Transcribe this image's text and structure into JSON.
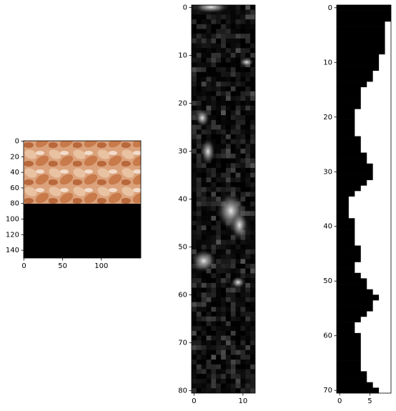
{
  "chart_data": [
    {
      "type": "image",
      "xlim": [
        -0.5,
        151
      ],
      "ylim": [
        150,
        -0.5
      ],
      "xticks": [
        0,
        50,
        100
      ],
      "yticks": [
        0,
        20,
        40,
        60,
        80,
        100,
        120,
        140
      ]
    },
    {
      "type": "image",
      "xlim": [
        -0.5,
        12.5
      ],
      "ylim": [
        80.5,
        -0.5
      ],
      "xticks": [
        0,
        10
      ],
      "yticks": [
        0,
        10,
        20,
        30,
        40,
        50,
        60,
        70,
        80
      ]
    },
    {
      "type": "profile",
      "xlim": [
        -0.5,
        8.5
      ],
      "ylim": [
        70.5,
        -0.5
      ],
      "xticks": [
        0,
        5
      ],
      "yticks": [
        0,
        10,
        20,
        30,
        40,
        50,
        60,
        70
      ],
      "values": [
        9,
        9,
        9,
        8,
        8,
        8,
        8,
        8,
        8,
        7,
        7,
        7,
        6,
        6,
        5,
        4,
        4,
        4,
        4,
        3,
        3,
        3,
        3,
        3,
        4,
        4,
        4,
        5,
        5,
        6,
        6,
        6,
        5,
        4,
        3,
        2,
        2,
        2,
        2,
        3,
        3,
        3,
        3,
        3,
        4,
        4,
        4,
        3,
        3,
        4,
        5,
        5,
        6,
        7,
        6,
        6,
        5,
        4,
        3,
        3,
        4,
        4,
        4,
        4,
        4,
        4,
        4,
        5,
        5,
        6,
        7
      ]
    }
  ]
}
